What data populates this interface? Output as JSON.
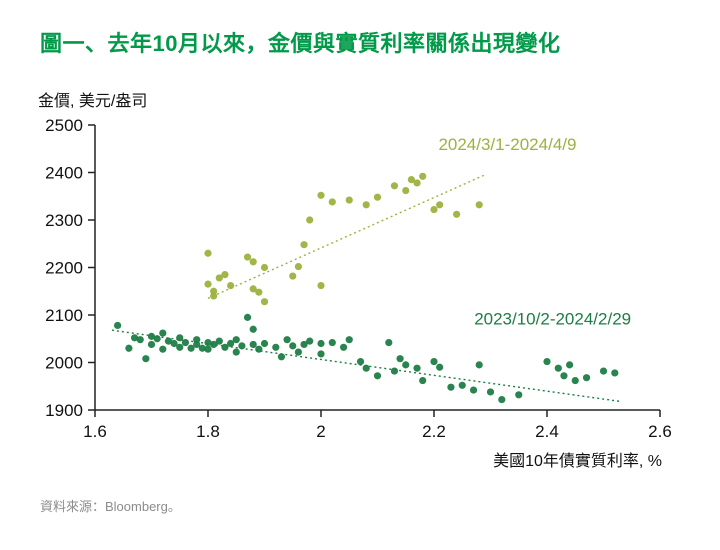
{
  "page": {
    "title": "圖一、去年10月以來，金價與實質利率關係出現變化",
    "title_color": "#009a49",
    "source": "資料來源：Bloomberg。"
  },
  "chart_data": {
    "type": "scatter",
    "title": "圖一、去年10月以來，金價與實質利率關係出現變化",
    "ylabel": "金價, 美元/盎司",
    "xlabel": "美國10年債實質利率, %",
    "xlim": [
      1.6,
      2.6
    ],
    "ylim": [
      1900,
      2500
    ],
    "xticks": [
      1.6,
      1.8,
      2,
      2.2,
      2.4,
      2.6
    ],
    "yticks": [
      1900,
      2000,
      2100,
      2200,
      2300,
      2400,
      2500
    ],
    "grid": false,
    "axis_color": "#222222",
    "series": [
      {
        "name": "2023/10/2-2024/2/29",
        "color": "#1d7d46",
        "label_x": 2.41,
        "label_y": 2080,
        "trend": {
          "x1": 1.63,
          "y1": 2068,
          "x2": 2.53,
          "y2": 1918
        },
        "points": [
          [
            1.64,
            2078
          ],
          [
            1.66,
            2030
          ],
          [
            1.67,
            2052
          ],
          [
            1.68,
            2048
          ],
          [
            1.69,
            2008
          ],
          [
            1.7,
            2055
          ],
          [
            1.7,
            2038
          ],
          [
            1.71,
            2050
          ],
          [
            1.72,
            2062
          ],
          [
            1.72,
            2028
          ],
          [
            1.73,
            2045
          ],
          [
            1.74,
            2040
          ],
          [
            1.75,
            2052
          ],
          [
            1.75,
            2032
          ],
          [
            1.76,
            2042
          ],
          [
            1.77,
            2030
          ],
          [
            1.78,
            2048
          ],
          [
            1.78,
            2038
          ],
          [
            1.79,
            2030
          ],
          [
            1.8,
            2042
          ],
          [
            1.8,
            2028
          ],
          [
            1.81,
            2038
          ],
          [
            1.82,
            2045
          ],
          [
            1.83,
            2032
          ],
          [
            1.84,
            2040
          ],
          [
            1.85,
            2048
          ],
          [
            1.85,
            2022
          ],
          [
            1.86,
            2035
          ],
          [
            1.87,
            2095
          ],
          [
            1.88,
            2070
          ],
          [
            1.88,
            2038
          ],
          [
            1.89,
            2028
          ],
          [
            1.9,
            2040
          ],
          [
            1.92,
            2032
          ],
          [
            1.93,
            2012
          ],
          [
            1.94,
            2048
          ],
          [
            1.95,
            2035
          ],
          [
            1.96,
            2022
          ],
          [
            1.97,
            2038
          ],
          [
            1.98,
            2045
          ],
          [
            2.0,
            2040
          ],
          [
            2.0,
            2018
          ],
          [
            2.02,
            2042
          ],
          [
            2.04,
            2032
          ],
          [
            2.05,
            2048
          ],
          [
            2.07,
            2002
          ],
          [
            2.08,
            1988
          ],
          [
            2.1,
            1972
          ],
          [
            2.12,
            2042
          ],
          [
            2.13,
            1982
          ],
          [
            2.14,
            2008
          ],
          [
            2.15,
            1995
          ],
          [
            2.17,
            1988
          ],
          [
            2.18,
            1962
          ],
          [
            2.2,
            2002
          ],
          [
            2.21,
            1990
          ],
          [
            2.23,
            1948
          ],
          [
            2.25,
            1952
          ],
          [
            2.27,
            1942
          ],
          [
            2.28,
            1995
          ],
          [
            2.3,
            1938
          ],
          [
            2.32,
            1922
          ],
          [
            2.35,
            1932
          ],
          [
            2.4,
            2002
          ],
          [
            2.42,
            1988
          ],
          [
            2.43,
            1972
          ],
          [
            2.44,
            1995
          ],
          [
            2.45,
            1962
          ],
          [
            2.47,
            1968
          ],
          [
            2.5,
            1982
          ],
          [
            2.52,
            1978
          ]
        ]
      },
      {
        "name": "2024/3/1-2024/4/9",
        "color": "#9cb23e",
        "label_x": 2.33,
        "label_y": 2447,
        "trend": {
          "x1": 1.8,
          "y1": 2135,
          "x2": 2.29,
          "y2": 2395
        },
        "points": [
          [
            1.8,
            2230
          ],
          [
            1.8,
            2165
          ],
          [
            1.81,
            2150
          ],
          [
            1.81,
            2140
          ],
          [
            1.82,
            2178
          ],
          [
            1.83,
            2185
          ],
          [
            1.84,
            2162
          ],
          [
            1.87,
            2222
          ],
          [
            1.88,
            2212
          ],
          [
            1.88,
            2155
          ],
          [
            1.89,
            2148
          ],
          [
            1.9,
            2128
          ],
          [
            1.9,
            2200
          ],
          [
            1.95,
            2182
          ],
          [
            1.96,
            2202
          ],
          [
            1.97,
            2248
          ],
          [
            1.98,
            2300
          ],
          [
            2.0,
            2352
          ],
          [
            2.0,
            2162
          ],
          [
            2.02,
            2338
          ],
          [
            2.05,
            2342
          ],
          [
            2.08,
            2332
          ],
          [
            2.1,
            2348
          ],
          [
            2.13,
            2372
          ],
          [
            2.15,
            2362
          ],
          [
            2.16,
            2385
          ],
          [
            2.17,
            2378
          ],
          [
            2.18,
            2392
          ],
          [
            2.2,
            2322
          ],
          [
            2.21,
            2332
          ],
          [
            2.24,
            2312
          ],
          [
            2.28,
            2332
          ]
        ]
      }
    ]
  }
}
